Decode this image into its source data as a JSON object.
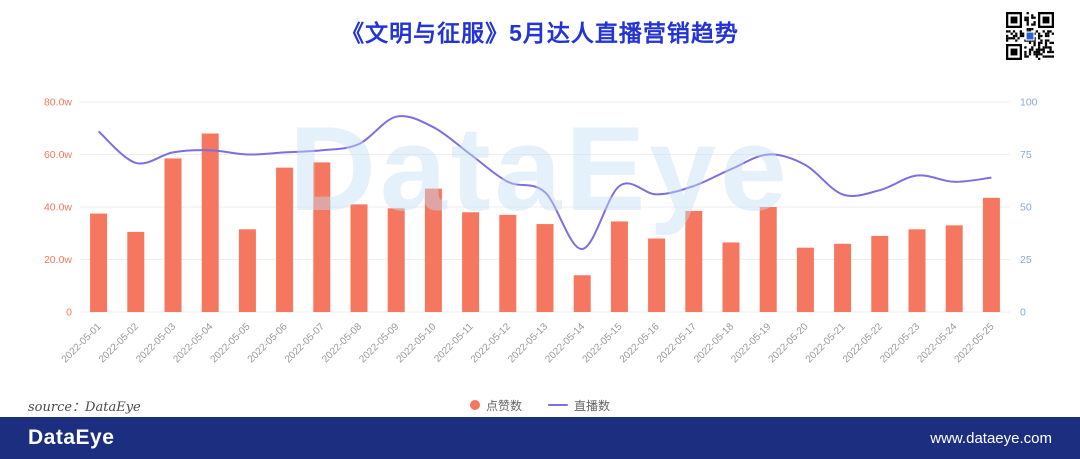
{
  "title": "《文明与征服》5月达人直播营销趋势",
  "watermark": "DataEye",
  "source_note": "source：DataEye",
  "footer": {
    "brand": "DataEye",
    "url": "www.dataeye.com"
  },
  "colors": {
    "title": "#2433d6",
    "bar": "#f5775f",
    "line": "#7d6ee2",
    "left_axis": "#f5775f",
    "right_axis": "#87a9d6",
    "x_labels": "#999999",
    "grid": "#eeeeee",
    "footer_bg": "#1c2e7f",
    "watermark": "#c3ddf3"
  },
  "legend": [
    {
      "label": "点赞数",
      "type": "bar"
    },
    {
      "label": "直播数",
      "type": "line"
    }
  ],
  "chart_data": {
    "type": "bar+line",
    "title": "《文明与征服》5月达人直播营销趋势",
    "legend_position": "bottom",
    "grid": true,
    "categories": [
      "2022-05-01",
      "2022-05-02",
      "2022-05-03",
      "2022-05-04",
      "2022-05-05",
      "2022-05-06",
      "2022-05-07",
      "2022-05-08",
      "2022-05-09",
      "2022-05-10",
      "2022-05-11",
      "2022-05-12",
      "2022-05-13",
      "2022-05-14",
      "2022-05-15",
      "2022-05-16",
      "2022-05-17",
      "2022-05-18",
      "2022-05-19",
      "2022-05-20",
      "2022-05-21",
      "2022-05-22",
      "2022-05-23",
      "2022-05-24",
      "2022-05-25"
    ],
    "series": [
      {
        "name": "点赞数",
        "type": "bar",
        "axis": "left",
        "unit": "w",
        "values": [
          37.5,
          30.5,
          58.5,
          68,
          31.5,
          55,
          57,
          41,
          39.5,
          47,
          38,
          37,
          33.5,
          14,
          34.5,
          28,
          38.5,
          26.5,
          40,
          24.5,
          26,
          29,
          31.5,
          33,
          43.5
        ]
      },
      {
        "name": "直播数",
        "type": "line",
        "axis": "right",
        "values": [
          86,
          71,
          76,
          77,
          75,
          76,
          77,
          80,
          93,
          88,
          75,
          62,
          57,
          30,
          60,
          56,
          60,
          68,
          75,
          70,
          56,
          58,
          65,
          62,
          64
        ]
      }
    ],
    "left_axis": {
      "min": 0,
      "max": 80,
      "ticks": [
        "0",
        "20.0w",
        "40.0w",
        "60.0w",
        "80.0w"
      ]
    },
    "right_axis": {
      "min": 0,
      "max": 100,
      "ticks": [
        "0",
        "25",
        "50",
        "75",
        "100"
      ]
    }
  }
}
